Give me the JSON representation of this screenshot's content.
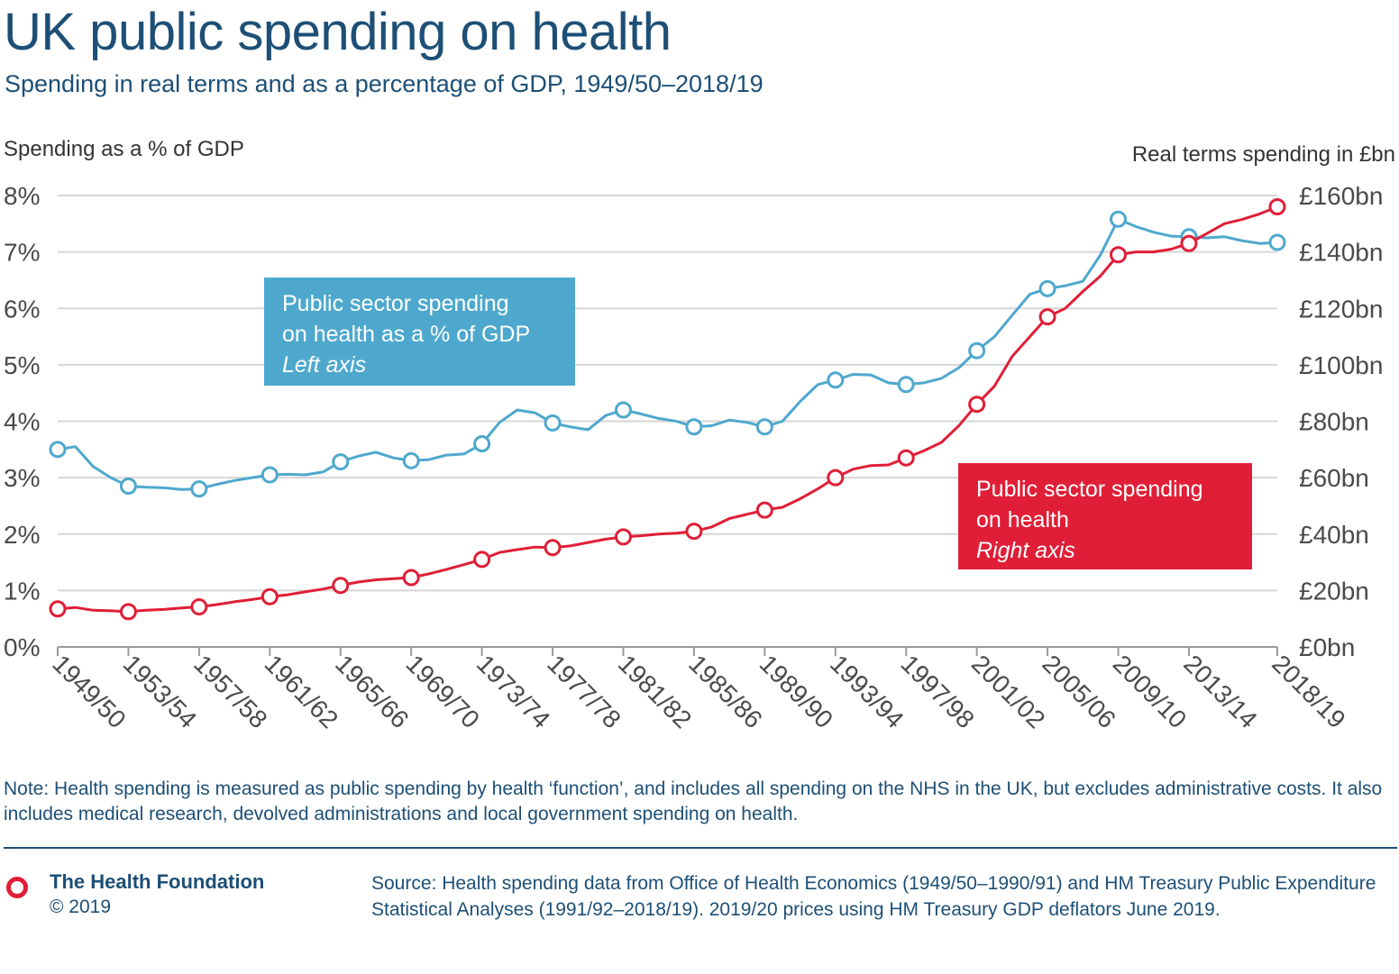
{
  "header": {
    "title": "UK public spending on health",
    "subtitle": "Spending in real terms and as a percentage of GDP, 1949/50–2018/19"
  },
  "axes": {
    "left_label": "Spending as a % of GDP",
    "right_label": "Real terms spending in £bn"
  },
  "annotations": {
    "gdp": {
      "line1": "Public sector spending",
      "line2": "on health as a % of GDP",
      "line3": "Left axis"
    },
    "real": {
      "line1": "Public sector spending",
      "line2": "on health",
      "line3": "Right axis"
    }
  },
  "colors": {
    "gdp_series": "#4ea8cd",
    "real_series": "#e01e37",
    "text_dark": "#1d4f76",
    "grid": "#d6d6d6"
  },
  "note": "Note: Health spending is measured as public spending by health ‘function’, and includes all spending on the NHS in the UK, but excludes administrative costs. It also includes medical research, devolved administrations and local government spending on health.",
  "footer": {
    "org": "The Health Foundation",
    "copyright": "© 2019",
    "logo_icon": "red-ring-icon",
    "source": "Source: Health spending data from Office of Health Economics (1949/50–1990/91) and HM Treasury Public Expenditure Statistical Analyses (1991/92–2018/19). 2019/20 prices using HM Treasury GDP deflators June 2019."
  },
  "chart_data": {
    "type": "line",
    "x": [
      "1949/50",
      "1950/51",
      "1951/52",
      "1952/53",
      "1953/54",
      "1954/55",
      "1955/56",
      "1956/57",
      "1957/58",
      "1958/59",
      "1959/60",
      "1960/61",
      "1961/62",
      "1962/63",
      "1963/64",
      "1964/65",
      "1965/66",
      "1966/67",
      "1967/68",
      "1968/69",
      "1969/70",
      "1970/71",
      "1971/72",
      "1972/73",
      "1973/74",
      "1974/75",
      "1975/76",
      "1976/77",
      "1977/78",
      "1978/79",
      "1979/80",
      "1980/81",
      "1981/82",
      "1982/83",
      "1983/84",
      "1984/85",
      "1985/86",
      "1986/87",
      "1987/88",
      "1988/89",
      "1989/90",
      "1990/91",
      "1991/92",
      "1992/93",
      "1993/94",
      "1994/95",
      "1995/96",
      "1996/97",
      "1997/98",
      "1998/99",
      "1999/00",
      "2000/01",
      "2001/02",
      "2002/03",
      "2003/04",
      "2004/05",
      "2005/06",
      "2006/07",
      "2007/08",
      "2008/09",
      "2009/10",
      "2010/11",
      "2011/12",
      "2012/13",
      "2013/14",
      "2014/15",
      "2015/16",
      "2016/17",
      "2017/18",
      "2018/19"
    ],
    "x_tick_labels": [
      "1949/50",
      "1953/54",
      "1957/58",
      "1961/62",
      "1965/66",
      "1969/70",
      "1973/74",
      "1977/78",
      "1981/82",
      "1985/86",
      "1989/90",
      "1993/94",
      "1997/98",
      "2001/02",
      "2005/06",
      "2009/10",
      "2013/14",
      "2018/19"
    ],
    "marker_years": [
      "1949/50",
      "1953/54",
      "1957/58",
      "1961/62",
      "1965/66",
      "1969/70",
      "1973/74",
      "1977/78",
      "1981/82",
      "1985/86",
      "1989/90",
      "1993/94",
      "1997/98",
      "2001/02",
      "2005/06",
      "2009/10",
      "2013/14",
      "2018/19"
    ],
    "series": [
      {
        "name": "Public sector spending on health as a % of GDP",
        "axis": "left",
        "unit": "%",
        "values": [
          3.5,
          3.55,
          3.2,
          3.0,
          2.85,
          2.83,
          2.82,
          2.79,
          2.8,
          2.88,
          2.95,
          3.0,
          3.05,
          3.06,
          3.05,
          3.1,
          3.28,
          3.38,
          3.45,
          3.35,
          3.3,
          3.32,
          3.4,
          3.42,
          3.6,
          3.98,
          4.2,
          4.15,
          3.97,
          3.9,
          3.85,
          4.1,
          4.2,
          4.13,
          4.05,
          4.0,
          3.9,
          3.92,
          4.02,
          3.98,
          3.9,
          4.0,
          4.35,
          4.65,
          4.73,
          4.83,
          4.82,
          4.68,
          4.65,
          4.68,
          4.76,
          4.95,
          5.25,
          5.5,
          5.88,
          6.25,
          6.35,
          6.4,
          6.48,
          6.95,
          7.58,
          7.45,
          7.35,
          7.28,
          7.27,
          7.25,
          7.27,
          7.2,
          7.15,
          7.17
        ]
      },
      {
        "name": "Public sector spending on health",
        "axis": "right",
        "unit": "£bn",
        "values": [
          13.5,
          14.0,
          13.0,
          12.8,
          12.5,
          13.0,
          13.3,
          13.8,
          14.2,
          15.0,
          16.0,
          16.8,
          17.8,
          18.5,
          19.5,
          20.5,
          21.8,
          23.0,
          23.8,
          24.2,
          24.6,
          25.9,
          27.5,
          29.2,
          31.0,
          33.5,
          34.5,
          35.4,
          35.2,
          35.8,
          37.0,
          38.2,
          39.0,
          39.4,
          40.0,
          40.3,
          41.0,
          42.5,
          45.5,
          47.0,
          48.5,
          49.5,
          52.5,
          56.0,
          60.0,
          63.0,
          64.3,
          64.5,
          67.0,
          69.5,
          72.5,
          78.5,
          86.0,
          92.5,
          103.0,
          110.0,
          117.0,
          120.0,
          126.0,
          131.5,
          139.0,
          140.0,
          140.0,
          141.0,
          143.0,
          146.5,
          150.0,
          151.5,
          153.5,
          156.0
        ]
      }
    ],
    "y_left": {
      "ticks": [
        "0%",
        "1%",
        "2%",
        "3%",
        "4%",
        "5%",
        "6%",
        "7%",
        "8%"
      ],
      "range": [
        0,
        8
      ]
    },
    "y_right": {
      "ticks": [
        "£0bn",
        "£20bn",
        "£40bn",
        "£60bn",
        "£80bn",
        "£100bn",
        "£120bn",
        "£140bn",
        "£160bn"
      ],
      "range": [
        0,
        160
      ]
    },
    "grid": true
  }
}
